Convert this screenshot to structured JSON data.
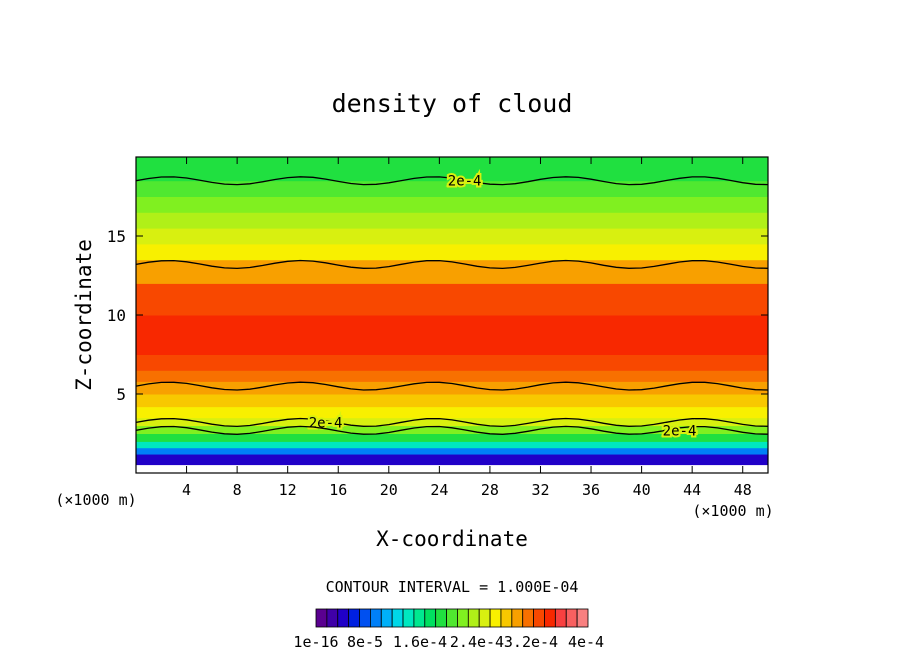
{
  "chart_data": {
    "type": "heatmap",
    "title": "density of cloud",
    "xlabel": "X-coordinate",
    "ylabel": "Z-coordinate",
    "x_unit": "(×1000 m)",
    "x_unit_right": "(×1000 m)",
    "xlim": [
      0,
      50
    ],
    "ylim": [
      0,
      20
    ],
    "x_ticks": [
      4,
      8,
      12,
      16,
      20,
      24,
      28,
      32,
      36,
      40,
      44,
      48
    ],
    "y_ticks": [
      5,
      10,
      15
    ],
    "contour_interval_text": "CONTOUR INTERVAL = 1.000E-04",
    "contour_labels": [
      "2e-4",
      "2e-4",
      "2e-4"
    ],
    "colorbar": {
      "min": 1e-16,
      "max": 0.0004,
      "tick_labels": [
        "1e-16",
        "8e-5",
        "1.6e-4",
        "2.4e-4",
        "3.2e-4",
        "4e-4"
      ],
      "colors": [
        "#5a0090",
        "#3f00a8",
        "#2000c8",
        "#0020e0",
        "#0050f0",
        "#0080f8",
        "#00b0f8",
        "#00d8e8",
        "#00e8c0",
        "#00e890",
        "#00e060",
        "#20e040",
        "#50e830",
        "#80f020",
        "#b0f018",
        "#d8f010",
        "#f8f000",
        "#f8c800",
        "#f8a000",
        "#f87000",
        "#f84800",
        "#f82800",
        "#f84040",
        "#f86060",
        "#f88080"
      ]
    },
    "profile": [
      {
        "z": 0.5,
        "level": 0
      },
      {
        "z": 1.2,
        "level": 2
      },
      {
        "z": 1.6,
        "level": 5
      },
      {
        "z": 2.0,
        "level": 8
      },
      {
        "z": 2.5,
        "level": 11
      },
      {
        "z": 3.0,
        "level": 13
      },
      {
        "z": 3.5,
        "level": 15
      },
      {
        "z": 4.2,
        "level": 16
      },
      {
        "z": 5.0,
        "level": 17
      },
      {
        "z": 5.8,
        "level": 18
      },
      {
        "z": 6.5,
        "level": 19
      },
      {
        "z": 7.5,
        "level": 20
      },
      {
        "z": 10.0,
        "level": 21
      },
      {
        "z": 12.0,
        "level": 20
      },
      {
        "z": 13.5,
        "level": 18
      },
      {
        "z": 14.5,
        "level": 16
      },
      {
        "z": 15.5,
        "level": 15
      },
      {
        "z": 16.5,
        "level": 14
      },
      {
        "z": 17.5,
        "level": 13
      },
      {
        "z": 18.5,
        "level": 12
      },
      {
        "z": 20.0,
        "level": 11
      }
    ]
  }
}
